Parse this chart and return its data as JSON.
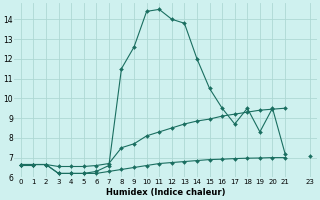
{
  "xlabel": "Humidex (Indice chaleur)",
  "bg_color": "#cff1ef",
  "grid_color": "#aed8d4",
  "line_color": "#1a6e60",
  "ylim": [
    6.0,
    14.8
  ],
  "xlim": [
    -0.5,
    23.5
  ],
  "yticks": [
    6,
    7,
    8,
    9,
    10,
    11,
    12,
    13,
    14
  ],
  "xticks": [
    0,
    1,
    2,
    3,
    4,
    5,
    6,
    7,
    8,
    9,
    10,
    11,
    12,
    13,
    14,
    15,
    16,
    17,
    18,
    19,
    20,
    21,
    23
  ],
  "line_peak": {
    "x": [
      0,
      1,
      2,
      3,
      4,
      5,
      6,
      7,
      8,
      9,
      10,
      11,
      12,
      13,
      14,
      15,
      16,
      17,
      18,
      19,
      20,
      21
    ],
    "y": [
      6.65,
      6.65,
      6.65,
      6.2,
      6.2,
      6.2,
      6.3,
      6.6,
      11.5,
      12.6,
      14.4,
      14.5,
      14.0,
      13.8,
      12.0,
      10.5,
      9.5,
      8.7,
      9.5,
      8.3,
      9.5,
      7.2
    ]
  },
  "line_mid": {
    "x": [
      0,
      1,
      2,
      3,
      4,
      5,
      6,
      7,
      8,
      9,
      10,
      11,
      12,
      13,
      14,
      15,
      16,
      17,
      18,
      19,
      20,
      21
    ],
    "y": [
      6.65,
      6.65,
      6.65,
      6.55,
      6.55,
      6.55,
      6.6,
      6.7,
      7.5,
      7.7,
      8.1,
      8.3,
      8.5,
      8.7,
      8.85,
      8.95,
      9.1,
      9.2,
      9.3,
      9.4,
      9.45,
      9.5
    ]
  },
  "line_low": {
    "x": [
      0,
      1,
      2,
      3,
      4,
      5,
      6,
      7,
      8,
      9,
      10,
      11,
      12,
      13,
      14,
      15,
      16,
      17,
      18,
      19,
      20,
      21
    ],
    "y": [
      6.65,
      6.65,
      6.65,
      6.2,
      6.2,
      6.2,
      6.2,
      6.3,
      6.4,
      6.5,
      6.6,
      6.7,
      6.75,
      6.8,
      6.85,
      6.9,
      6.92,
      6.95,
      6.97,
      6.98,
      7.0,
      7.0
    ]
  },
  "line_flat": {
    "x": [
      0,
      1,
      23
    ],
    "y": [
      6.65,
      6.65,
      7.1
    ]
  }
}
